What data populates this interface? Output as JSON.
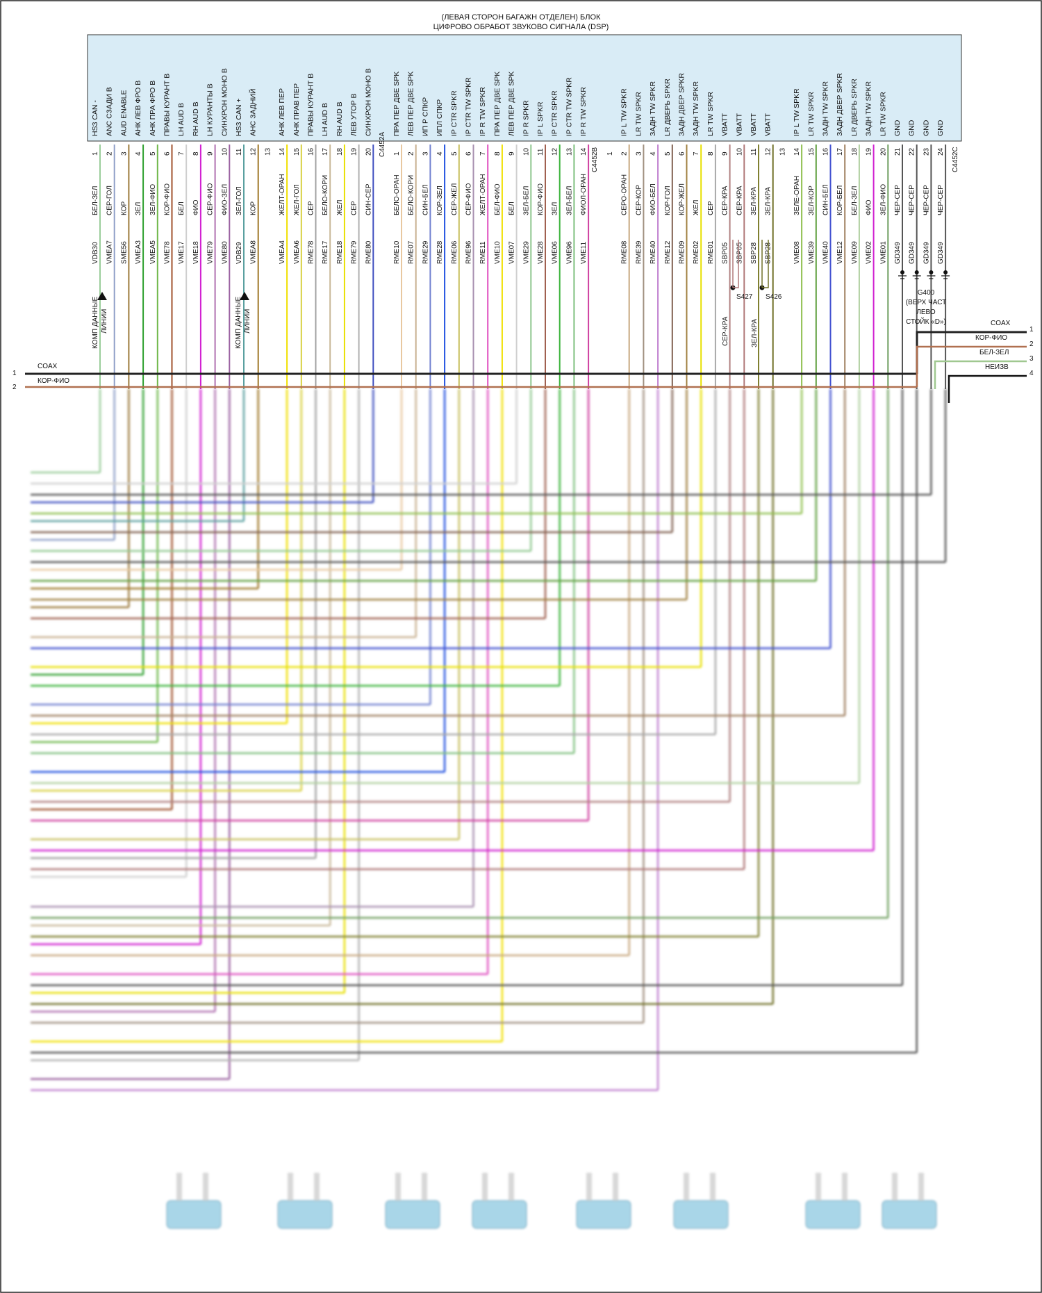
{
  "title": {
    "line1": "(ЛЕВАЯ СТОРОН БАГАЖН ОТДЕЛЕН) БЛОК",
    "line2": "ЦИФРОВО ОБРАБОТ ЗВУКОВО СИГНАЛА (DSP)"
  },
  "colors": {
    "module_fill": "#d9ecf6",
    "speaker_fill": "#a9d6e8",
    "bus": "#222222"
  },
  "connectors": {
    "A": "C4452A",
    "B": "C4452B",
    "C": "C4452C"
  },
  "pins": [
    {
      "conn": "A",
      "num": "1",
      "func": "HS3 CAN -",
      "color": "БЕЛ-ЗЕЛ",
      "circuit": "VDB30",
      "hex": "#9acd9a"
    },
    {
      "conn": "A",
      "num": "2",
      "func": "ANC СЗАДИ В",
      "color": "СЕР-ГОЛ",
      "circuit": "VMEA7",
      "hex": "#8fa0c8"
    },
    {
      "conn": "A",
      "num": "3",
      "func": "AUD ENABLE",
      "color": "КОР",
      "circuit": "SME56",
      "hex": "#9c7a3c"
    },
    {
      "conn": "A",
      "num": "4",
      "func": "АНК ЛЕВ ФРО В",
      "color": "ЗЕЛ",
      "circuit": "VMEA3",
      "hex": "#2ea02e"
    },
    {
      "conn": "A",
      "num": "5",
      "func": "АНК ПРА ФРО В",
      "color": "ЗЕЛ-ФИО",
      "circuit": "VMEA5",
      "hex": "#6fb84a"
    },
    {
      "conn": "A",
      "num": "6",
      "func": "ПРАВЫ КУРАНТ В",
      "color": "КОР-ФИО",
      "circuit": "VME78",
      "hex": "#a0522d"
    },
    {
      "conn": "A",
      "num": "7",
      "func": "LH AUD В",
      "color": "БЕЛ",
      "circuit": "VME17",
      "hex": "#cfcfcf"
    },
    {
      "conn": "A",
      "num": "8",
      "func": "RH AUD В",
      "color": "ФИО",
      "circuit": "VME18",
      "hex": "#d11fd1"
    },
    {
      "conn": "A",
      "num": "9",
      "func": "LH КУРАНТЫ В",
      "color": "СЕР-ФИО",
      "circuit": "VME79",
      "hex": "#b070b0"
    },
    {
      "conn": "A",
      "num": "10",
      "func": "СИНХРОН МОНО В",
      "color": "ФИО-ЗЕЛ",
      "circuit": "VME80",
      "hex": "#9a60a0"
    },
    {
      "conn": "A",
      "num": "11",
      "func": "HS3 CAN +",
      "color": "ЗЕЛ-ГОЛ",
      "circuit": "VDB29",
      "hex": "#5aa0a0"
    },
    {
      "conn": "A",
      "num": "12",
      "func": "АНС ЗАДНИЙ",
      "color": "КОР",
      "circuit": "VMEA8",
      "hex": "#a07828"
    },
    {
      "conn": "A",
      "num": "13",
      "func": "",
      "color": "",
      "circuit": "",
      "hex": ""
    },
    {
      "conn": "A",
      "num": "14",
      "func": "АНК ЛЕВ ПЕР",
      "color": "ЖЕЛТ-ОРАН",
      "circuit": "VMEA4",
      "hex": "#f0e000"
    },
    {
      "conn": "A",
      "num": "15",
      "func": "АНК ПРАВ ПЕР",
      "color": "ЖЕЛ-ГОЛ",
      "circuit": "VMEA6",
      "hex": "#d8d040"
    },
    {
      "conn": "A",
      "num": "16",
      "func": "ПРАВЫ КУРАНТ В",
      "color": "СЕР",
      "circuit": "RME78",
      "hex": "#a0a0a0"
    },
    {
      "conn": "A",
      "num": "17",
      "func": "LH AUD В",
      "color": "БЕЛО-КОРИ",
      "circuit": "RME17",
      "hex": "#c8b898"
    },
    {
      "conn": "A",
      "num": "18",
      "func": "RH AUD В",
      "color": "ЖЕЛ",
      "circuit": "RME18",
      "hex": "#e8e000"
    },
    {
      "conn": "A",
      "num": "19",
      "func": "ЛЕВ УТОР В",
      "color": "СЕР",
      "circuit": "RME79",
      "hex": "#b0b0b0"
    },
    {
      "conn": "A",
      "num": "20",
      "func": "СИНХРОН МОНО В",
      "color": "СИН-СЕР",
      "circuit": "RME80",
      "hex": "#4050c0"
    },
    {
      "conn": "B",
      "num": "1",
      "func": "ПРА ПЕР ДВЕ SPK",
      "color": "БЕЛО-ОРАН",
      "circuit": "RME10",
      "hex": "#e8c8a0"
    },
    {
      "conn": "B",
      "num": "2",
      "func": "ЛЕВ ПЕР ДВЕ SPK",
      "color": "БЕЛО-КОРИ",
      "circuit": "RME07",
      "hex": "#c8b090"
    },
    {
      "conn": "B",
      "num": "3",
      "func": "ИП Р СПКР",
      "color": "СИН-БЕЛ",
      "circuit": "RME29",
      "hex": "#7080d0"
    },
    {
      "conn": "B",
      "num": "4",
      "func": "ИПЛ СПКР",
      "color": "КОР-ЗЕЛ",
      "circuit": "RME28",
      "hex": "#2050e0"
    },
    {
      "conn": "B",
      "num": "5",
      "func": "IP CTR SPKR",
      "color": "СЕР-ЖЕЛ",
      "circuit": "RME06",
      "hex": "#c8c060"
    },
    {
      "conn": "B",
      "num": "6",
      "func": "IP CTR TW SPKR",
      "color": "СЕР-ФИО",
      "circuit": "RME96",
      "hex": "#a890b0"
    },
    {
      "conn": "B",
      "num": "7",
      "func": "IP R TW SPKR",
      "color": "ЖЕЛТ-ОРАН",
      "circuit": "RME11",
      "hex": "#e050c0"
    },
    {
      "conn": "B",
      "num": "8",
      "func": "ПРА ПЕР ДВЕ SPK",
      "color": "БЕЛ-ФИО",
      "circuit": "VME10",
      "hex": "#f0e000"
    },
    {
      "conn": "B",
      "num": "9",
      "func": "ЛЕВ ПЕР ДВЕ SPK",
      "color": "БЕЛ",
      "circuit": "VME07",
      "hex": "#d0d0d0"
    },
    {
      "conn": "B",
      "num": "10",
      "func": "IP R SPKR",
      "color": "ЗЕЛ-БЕЛ",
      "circuit": "VME29",
      "hex": "#90c890"
    },
    {
      "conn": "B",
      "num": "11",
      "func": "IP L SPKR",
      "color": "КОР-ФИО",
      "circuit": "VME28",
      "hex": "#a06050"
    },
    {
      "conn": "B",
      "num": "12",
      "func": "IP CTR SPKR",
      "color": "ЗЕЛ",
      "circuit": "VME06",
      "hex": "#3cb43c"
    },
    {
      "conn": "B",
      "num": "13",
      "func": "IP CTR TW SPKR",
      "color": "ЗЕЛ-БЕЛ",
      "circuit": "VME96",
      "hex": "#80c080"
    },
    {
      "conn": "B",
      "num": "14",
      "func": "IP R TW SPKR",
      "color": "ФИОЛ-ОРАН",
      "circuit": "VME11",
      "hex": "#d040a0"
    },
    {
      "conn": "C",
      "num": "1",
      "func": "",
      "color": "",
      "circuit": "",
      "hex": ""
    },
    {
      "conn": "C",
      "num": "2",
      "func": "IP L TW SPKR",
      "color": "СЕРО-ОРАН",
      "circuit": "RME08",
      "hex": "#c8a880"
    },
    {
      "conn": "C",
      "num": "3",
      "func": "LR TW SPKR",
      "color": "СЕР-КОР",
      "circuit": "RME39",
      "hex": "#a09080"
    },
    {
      "conn": "C",
      "num": "4",
      "func": "ЗАДН TW SPKR",
      "color": "ФИО-БЕЛ",
      "circuit": "RME40",
      "hex": "#c080d0"
    },
    {
      "conn": "C",
      "num": "5",
      "func": "LR ДВЕРЬ SPKR",
      "color": "КОР-ГОЛ",
      "circuit": "RME12",
      "hex": "#806050"
    },
    {
      "conn": "C",
      "num": "6",
      "func": "ЗАДН ДВЕР SPKR",
      "color": "КОР-ЖЕЛ",
      "circuit": "RME09",
      "hex": "#a08040"
    },
    {
      "conn": "C",
      "num": "7",
      "func": "ЗАДН TW SPKR",
      "color": "ЖЕЛ",
      "circuit": "RME02",
      "hex": "#e8e000"
    },
    {
      "conn": "C",
      "num": "8",
      "func": "LR TW SPKR",
      "color": "СЕР",
      "circuit": "RME01",
      "hex": "#a8a8a8"
    },
    {
      "conn": "C",
      "num": "9",
      "func": "VBATT",
      "color": "СЕР-КРА",
      "circuit": "SBP05",
      "hex": "#b08080"
    },
    {
      "conn": "C",
      "num": "10",
      "func": "VBATT",
      "color": "СЕР-КРА",
      "circuit": "SBP05",
      "hex": "#b07878"
    },
    {
      "conn": "C",
      "num": "11",
      "func": "VBATT",
      "color": "ЗЕЛ-КРА",
      "circuit": "SBP28",
      "hex": "#808030"
    },
    {
      "conn": "C",
      "num": "12",
      "func": "VBATT",
      "color": "ЗЕЛ-КРА",
      "circuit": "SBP28",
      "hex": "#707028"
    },
    {
      "conn": "C",
      "num": "13",
      "func": "",
      "color": "",
      "circuit": "",
      "hex": ""
    },
    {
      "conn": "C",
      "num": "14",
      "func": "IP L TW SPKR",
      "color": "ЗЕЛЕ-ОРАН",
      "circuit": "VME08",
      "hex": "#90c050"
    },
    {
      "conn": "C",
      "num": "15",
      "func": "LR TW SPKR",
      "color": "ЗЕЛ-КОР",
      "circuit": "VME39",
      "hex": "#60a040"
    },
    {
      "conn": "C",
      "num": "16",
      "func": "ЗАДН TW SPKR",
      "color": "СИН-БЕЛ",
      "circuit": "VME40",
      "hex": "#4050d0"
    },
    {
      "conn": "C",
      "num": "17",
      "func": "ЗАДН ДВЕР SPKR",
      "color": "КОР-БЕЛ",
      "circuit": "VME12",
      "hex": "#a08060"
    },
    {
      "conn": "C",
      "num": "18",
      "func": "LR ДВЕРЬ SPKR",
      "color": "БЕЛ-ЗЕЛ",
      "circuit": "VME09",
      "hex": "#b0d0a0"
    },
    {
      "conn": "C",
      "num": "19",
      "func": "ЗАДН TW SPKR",
      "color": "ФИО",
      "circuit": "VME02",
      "hex": "#d020d0"
    },
    {
      "conn": "C",
      "num": "20",
      "func": "LR TW SPKR",
      "color": "ЗЕЛ-ФИО",
      "circuit": "VME01",
      "hex": "#70a060"
    },
    {
      "conn": "C",
      "num": "21",
      "func": "GND",
      "color": "ЧЕР-СЕР",
      "circuit": "GD349",
      "hex": "#555555"
    },
    {
      "conn": "C",
      "num": "22",
      "func": "GND",
      "color": "ЧЕР-СЕР",
      "circuit": "GD349",
      "hex": "#555555"
    },
    {
      "conn": "C",
      "num": "23",
      "func": "GND",
      "color": "ЧЕР-СЕР",
      "circuit": "GD349",
      "hex": "#555555"
    },
    {
      "conn": "C",
      "num": "24",
      "func": "GND",
      "color": "ЧЕР-СЕР",
      "circuit": "GD349",
      "hex": "#555555"
    }
  ],
  "notes": {
    "data_lines_1": "КОМП ДАННЫЕ",
    "data_lines_2": "ЛИНИИ",
    "splice_s427": "S427",
    "splice_s426": "S426",
    "splice_wire_1": "СЕР-КРА",
    "splice_wire_2": "ЗЕЛ-КРА"
  },
  "ground": {
    "name": "G400",
    "line1": "(ВЕРХ ЧАСТ",
    "line2": "ЛЕВО",
    "line3": "СТОЙК «D»)"
  },
  "bus": {
    "left": [
      {
        "num": "1",
        "label": "COAX"
      },
      {
        "num": "2",
        "label": "КОР-ФИО"
      }
    ],
    "right": [
      {
        "num": "1",
        "label": "COAX"
      },
      {
        "num": "2",
        "label": "КОР-ФИО"
      },
      {
        "num": "3",
        "label": "БЕЛ-ЗЕЛ"
      },
      {
        "num": "4",
        "label": "НЕИЗВ"
      }
    ]
  }
}
